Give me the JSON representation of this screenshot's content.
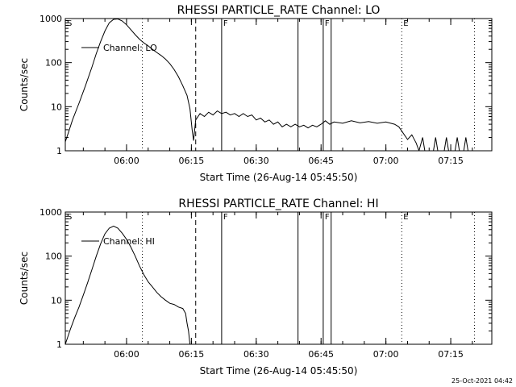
{
  "chart_data": [
    {
      "type": "line",
      "title": "RHESSI PARTICLE_RATE Channel: LO",
      "xlabel": "Start Time (26-Aug-14 05:45:50)",
      "ylabel": "Counts/sec",
      "yscale": "log",
      "ylim": [
        1,
        1000
      ],
      "yticks": [
        1,
        10,
        100,
        1000
      ],
      "yticklabels": [
        "1",
        "10",
        "100",
        "1000"
      ],
      "xlim": [
        "05:45:50",
        "07:24:30"
      ],
      "xticks": [
        "06:00",
        "06:15",
        "06:30",
        "06:45",
        "07:00",
        "07:15"
      ],
      "legend": {
        "label": "Channel: LO",
        "placement": "top-left"
      },
      "markers": [
        {
          "time": "06:03:40",
          "style": "dotted",
          "flag": ""
        },
        {
          "time": "06:16:00",
          "style": "dashed",
          "flag": ""
        },
        {
          "time": "06:22:00",
          "style": "solid",
          "flag": "F"
        },
        {
          "time": "06:39:40",
          "style": "solid",
          "flag": ""
        },
        {
          "time": "06:45:30",
          "style": "solid",
          "flag": "F"
        },
        {
          "time": "06:47:20",
          "style": "solid",
          "flag": ""
        },
        {
          "time": "07:03:40",
          "style": "dotted",
          "flag": "E"
        },
        {
          "time": "07:20:30",
          "style": "dotted",
          "flag": ""
        }
      ],
      "corner_flag": "S",
      "series": [
        {
          "name": "Channel: LO",
          "points": [
            [
              "05:45:50",
              1.6
            ],
            [
              "05:46:30",
              2.5
            ],
            [
              "05:47:30",
              5
            ],
            [
              "05:49:00",
              12
            ],
            [
              "05:50:30",
              30
            ],
            [
              "05:52:00",
              80
            ],
            [
              "05:53:00",
              160
            ],
            [
              "05:54:00",
              300
            ],
            [
              "05:55:00",
              520
            ],
            [
              "05:56:00",
              800
            ],
            [
              "05:57:00",
              960
            ],
            [
              "05:58:00",
              980
            ],
            [
              "05:59:00",
              880
            ],
            [
              "06:00:00",
              720
            ],
            [
              "06:01:00",
              560
            ],
            [
              "06:02:00",
              430
            ],
            [
              "06:03:00",
              340
            ],
            [
              "06:04:00",
              280
            ],
            [
              "06:05:00",
              240
            ],
            [
              "06:06:00",
              200
            ],
            [
              "06:07:00",
              170
            ],
            [
              "06:08:00",
              145
            ],
            [
              "06:09:00",
              120
            ],
            [
              "06:10:00",
              95
            ],
            [
              "06:11:00",
              70
            ],
            [
              "06:12:00",
              48
            ],
            [
              "06:13:00",
              30
            ],
            [
              "06:14:00",
              18
            ],
            [
              "06:14:40",
              9
            ],
            [
              "06:15:10",
              3
            ],
            [
              "06:15:30",
              1.7
            ],
            [
              "06:16:00",
              5
            ],
            [
              "06:17:00",
              7
            ],
            [
              "06:18:00",
              6
            ],
            [
              "06:19:00",
              7.5
            ],
            [
              "06:20:00",
              6.5
            ],
            [
              "06:21:00",
              8
            ],
            [
              "06:22:00",
              7
            ],
            [
              "06:23:00",
              7.5
            ],
            [
              "06:24:00",
              6.5
            ],
            [
              "06:25:00",
              7
            ],
            [
              "06:26:00",
              6
            ],
            [
              "06:27:00",
              7
            ],
            [
              "06:28:00",
              6
            ],
            [
              "06:29:00",
              6.5
            ],
            [
              "06:30:00",
              5
            ],
            [
              "06:31:00",
              5.5
            ],
            [
              "06:32:00",
              4.5
            ],
            [
              "06:33:00",
              5
            ],
            [
              "06:34:00",
              4
            ],
            [
              "06:35:00",
              4.5
            ],
            [
              "06:36:00",
              3.5
            ],
            [
              "06:37:00",
              4
            ],
            [
              "06:38:00",
              3.5
            ],
            [
              "06:39:00",
              4
            ],
            [
              "06:40:00",
              3.5
            ],
            [
              "06:41:00",
              3.8
            ],
            [
              "06:42:00",
              3.3
            ],
            [
              "06:43:00",
              3.8
            ],
            [
              "06:44:00",
              3.5
            ],
            [
              "06:45:00",
              4
            ],
            [
              "06:46:00",
              4.8
            ],
            [
              "06:47:00",
              4
            ],
            [
              "06:48:00",
              4.5
            ],
            [
              "06:50:00",
              4.2
            ],
            [
              "06:52:00",
              4.8
            ],
            [
              "06:54:00",
              4.3
            ],
            [
              "06:56:00",
              4.6
            ],
            [
              "06:58:00",
              4.2
            ],
            [
              "07:00:00",
              4.5
            ],
            [
              "07:02:00",
              4
            ],
            [
              "07:03:00",
              3.5
            ],
            [
              "07:04:00",
              2.5
            ],
            [
              "07:05:00",
              1.8
            ],
            [
              "07:06:00",
              2.3
            ],
            [
              "07:07:00",
              1.5
            ],
            [
              "07:07:40",
              1
            ],
            [
              "07:08:30",
              2
            ],
            [
              "07:09:00",
              1
            ],
            [
              "07:11:00",
              1
            ],
            [
              "07:11:30",
              2
            ],
            [
              "07:12:00",
              1
            ],
            [
              "07:13:30",
              1
            ],
            [
              "07:14:00",
              2
            ],
            [
              "07:14:30",
              1
            ],
            [
              "07:16:00",
              1
            ],
            [
              "07:16:30",
              2
            ],
            [
              "07:17:00",
              1
            ],
            [
              "07:18:00",
              1
            ],
            [
              "07:18:30",
              2
            ],
            [
              "07:19:00",
              1
            ]
          ]
        }
      ]
    },
    {
      "type": "line",
      "title": "RHESSI PARTICLE_RATE Channel: HI",
      "xlabel": "Start Time (26-Aug-14 05:45:50)",
      "ylabel": "Counts/sec",
      "yscale": "log",
      "ylim": [
        1,
        1000
      ],
      "yticks": [
        1,
        10,
        100,
        1000
      ],
      "yticklabels": [
        "1",
        "10",
        "100",
        "1000"
      ],
      "xlim": [
        "05:45:50",
        "07:24:30"
      ],
      "xticks": [
        "06:00",
        "06:15",
        "06:30",
        "06:45",
        "07:00",
        "07:15"
      ],
      "legend": {
        "label": "Channel: HI",
        "placement": "top-left"
      },
      "markers": [
        {
          "time": "06:03:40",
          "style": "dotted",
          "flag": ""
        },
        {
          "time": "06:16:00",
          "style": "dashed",
          "flag": ""
        },
        {
          "time": "06:22:00",
          "style": "solid",
          "flag": "F"
        },
        {
          "time": "06:39:40",
          "style": "solid",
          "flag": ""
        },
        {
          "time": "06:45:30",
          "style": "solid",
          "flag": "F"
        },
        {
          "time": "06:47:20",
          "style": "solid",
          "flag": ""
        },
        {
          "time": "07:03:40",
          "style": "dotted",
          "flag": "E"
        },
        {
          "time": "07:20:30",
          "style": "dotted",
          "flag": ""
        }
      ],
      "corner_flag": "S",
      "series": [
        {
          "name": "Channel: HI",
          "points": [
            [
              "05:45:50",
              1
            ],
            [
              "05:46:20",
              1.4
            ],
            [
              "05:47:00",
              2.2
            ],
            [
              "05:48:00",
              4
            ],
            [
              "05:49:00",
              7
            ],
            [
              "05:50:00",
              13
            ],
            [
              "05:51:00",
              25
            ],
            [
              "05:52:00",
              50
            ],
            [
              "05:53:00",
              100
            ],
            [
              "05:54:00",
              190
            ],
            [
              "05:55:00",
              320
            ],
            [
              "05:56:00",
              430
            ],
            [
              "05:57:00",
              480
            ],
            [
              "05:58:00",
              430
            ],
            [
              "05:59:00",
              330
            ],
            [
              "06:00:00",
              240
            ],
            [
              "06:01:00",
              160
            ],
            [
              "06:02:00",
              100
            ],
            [
              "06:03:00",
              60
            ],
            [
              "06:04:00",
              38
            ],
            [
              "06:05:00",
              26
            ],
            [
              "06:06:00",
              20
            ],
            [
              "06:07:00",
              15
            ],
            [
              "06:08:00",
              12
            ],
            [
              "06:09:00",
              10
            ],
            [
              "06:10:00",
              8.5
            ],
            [
              "06:11:00",
              8
            ],
            [
              "06:12:00",
              7
            ],
            [
              "06:13:00",
              6.5
            ],
            [
              "06:13:40",
              5
            ],
            [
              "06:14:00",
              3
            ],
            [
              "06:14:20",
              2
            ],
            [
              "06:14:40",
              1
            ]
          ]
        }
      ]
    }
  ],
  "footer": {
    "timestamp": "25-Oct-2021 04:42"
  }
}
